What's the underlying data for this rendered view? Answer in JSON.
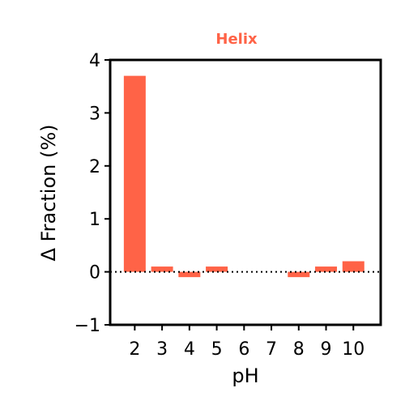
{
  "chart_data": {
    "type": "bar",
    "title": "Helix",
    "xlabel": "pH",
    "ylabel": "Δ Fraction (%)",
    "categories": [
      "2",
      "3",
      "4",
      "5",
      "6",
      "7",
      "8",
      "9",
      "10"
    ],
    "x": [
      2,
      3,
      4,
      5,
      6,
      7,
      8,
      9,
      10
    ],
    "values": [
      3.7,
      0.1,
      -0.1,
      0.1,
      0.0,
      0.0,
      -0.1,
      0.1,
      0.2
    ],
    "ylim": [
      -1,
      4
    ],
    "yticks": [
      -1,
      0,
      1,
      2,
      3,
      4
    ],
    "ytick_labels": [
      "−1",
      "0",
      "1",
      "2",
      "3",
      "4"
    ],
    "reference_line": {
      "y": 0,
      "style": "dotted"
    },
    "colors": {
      "bar": "#ff6347",
      "title": "#ff6347",
      "axis": "#000000"
    },
    "grid": false
  }
}
